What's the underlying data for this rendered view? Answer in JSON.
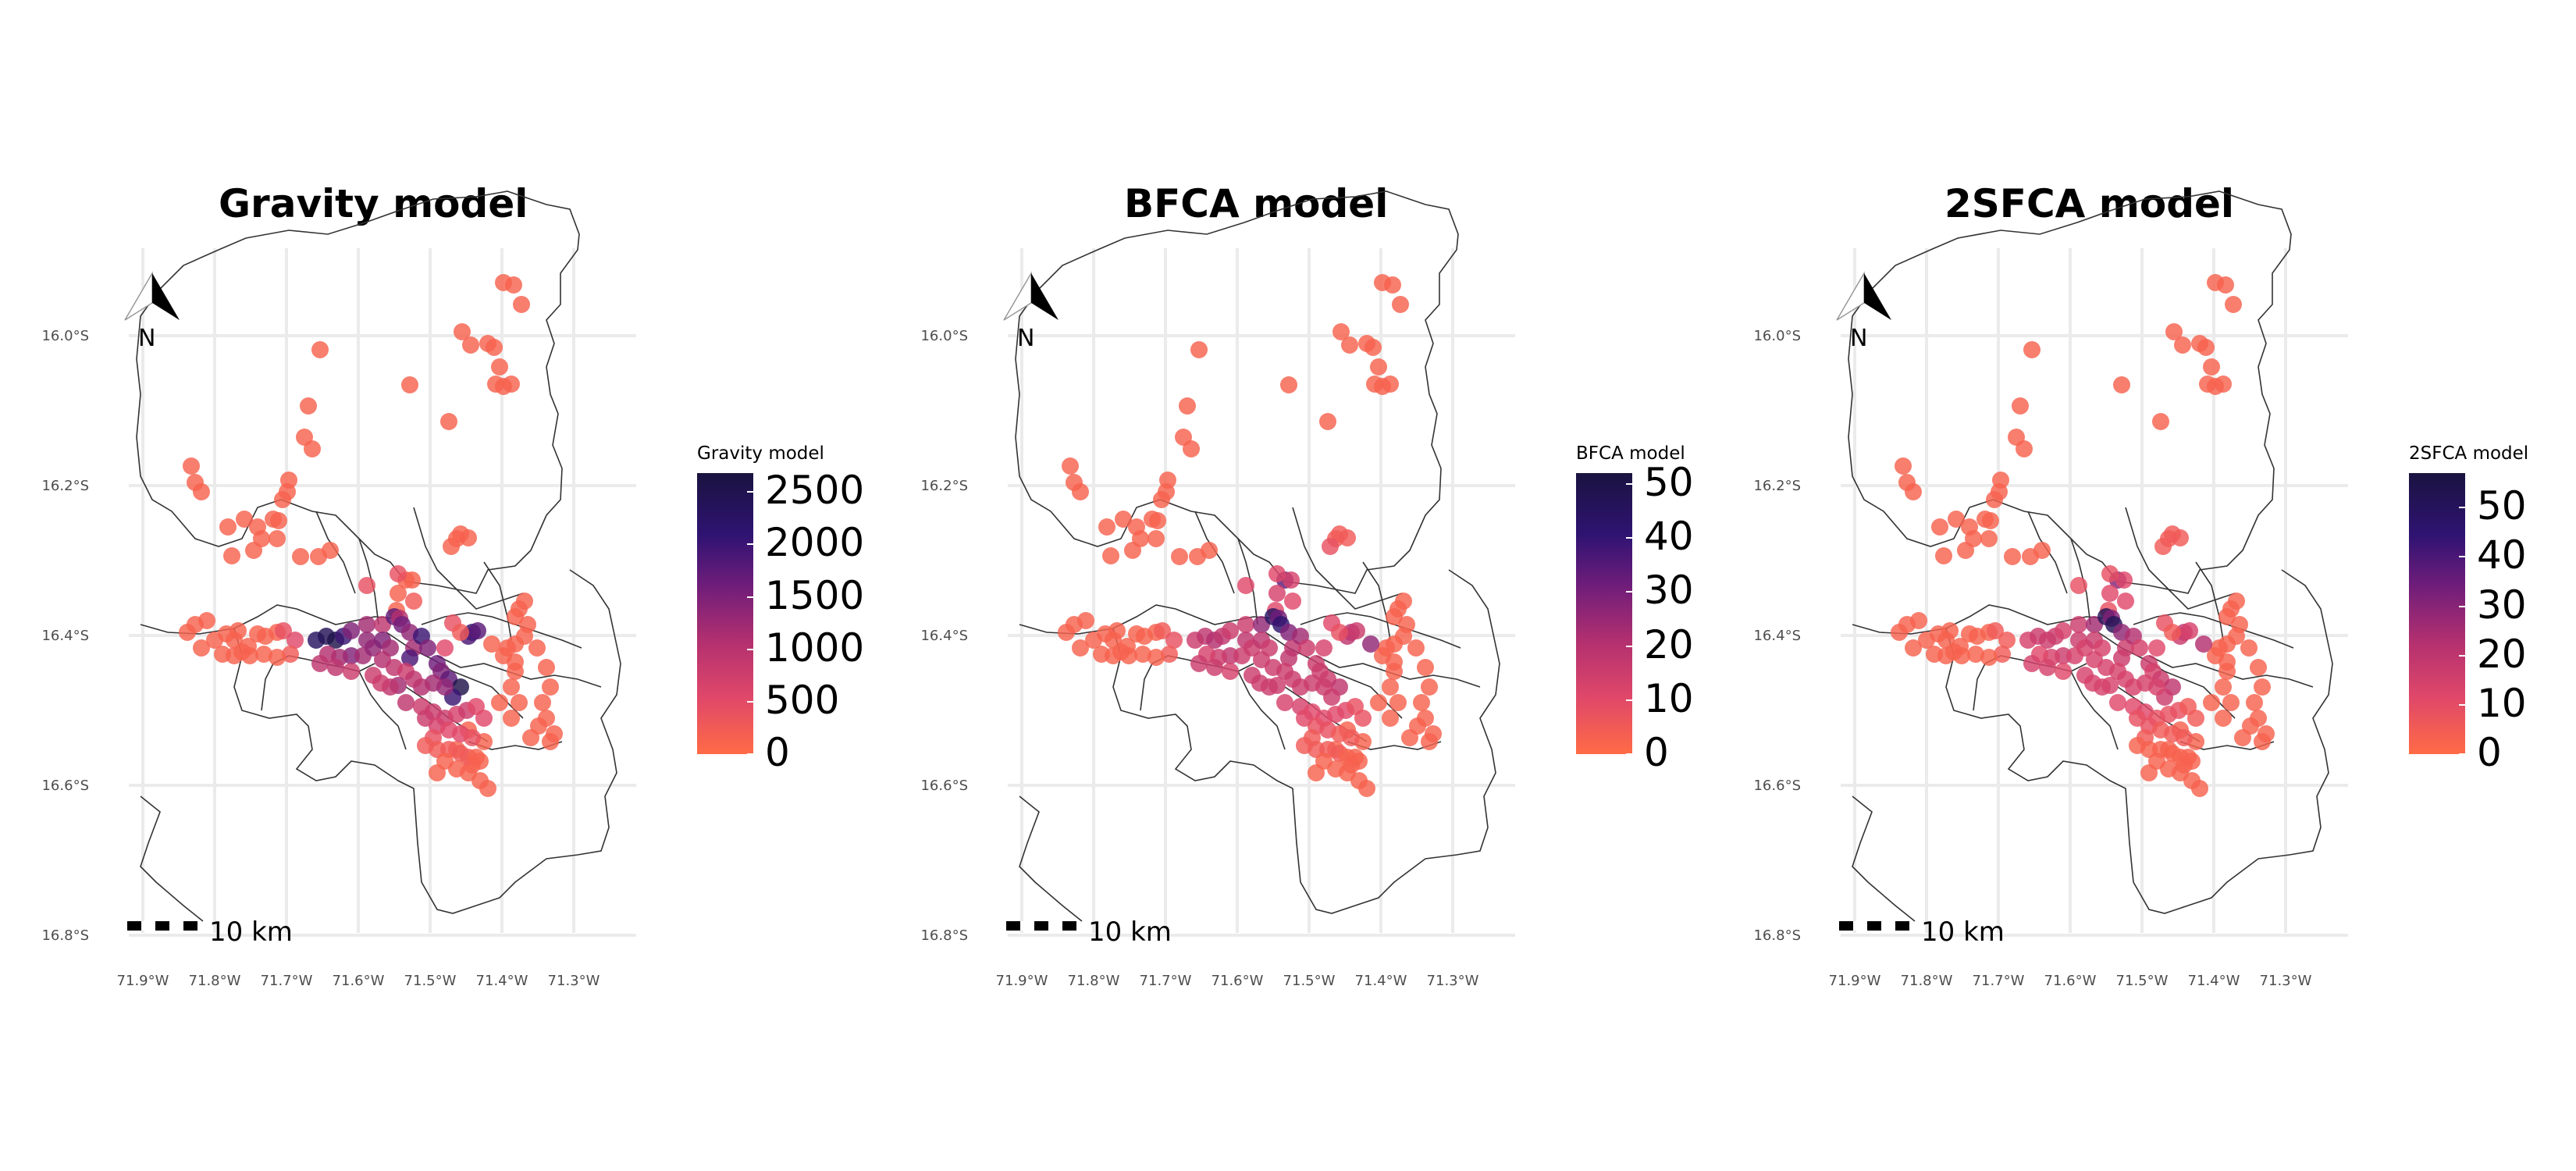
{
  "panels": [
    {
      "title": "Gravity model",
      "legend_title": "Gravity model",
      "legend_ticks": [
        "2500",
        "2000",
        "1500",
        "1000",
        "500",
        "0"
      ],
      "scale_label": "10 km",
      "north_label": "N"
    },
    {
      "title": "BFCA model",
      "legend_title": "BFCA model",
      "legend_ticks": [
        "50",
        "40",
        "30",
        "20",
        "10",
        "0"
      ],
      "scale_label": "10 km",
      "north_label": "N"
    },
    {
      "title": "2SFCA model",
      "legend_title": "2SFCA model",
      "legend_ticks": [
        "50",
        "40",
        "30",
        "20",
        "10",
        "0"
      ],
      "scale_label": "10 km",
      "north_label": "N"
    }
  ],
  "axes": {
    "y_ticks": [
      "16.0°S",
      "16.2°S",
      "16.4°S",
      "16.6°S",
      "16.8°S"
    ],
    "x_ticks": [
      "71.9°W",
      "71.8°W",
      "71.7°W",
      "71.6°W",
      "71.5°W",
      "71.4°W",
      "71.3°W"
    ]
  },
  "colors": {
    "low": "#ff6b45",
    "high": "#1a1340",
    "grid": "#ebebeb",
    "boundary": "#333333"
  }
}
